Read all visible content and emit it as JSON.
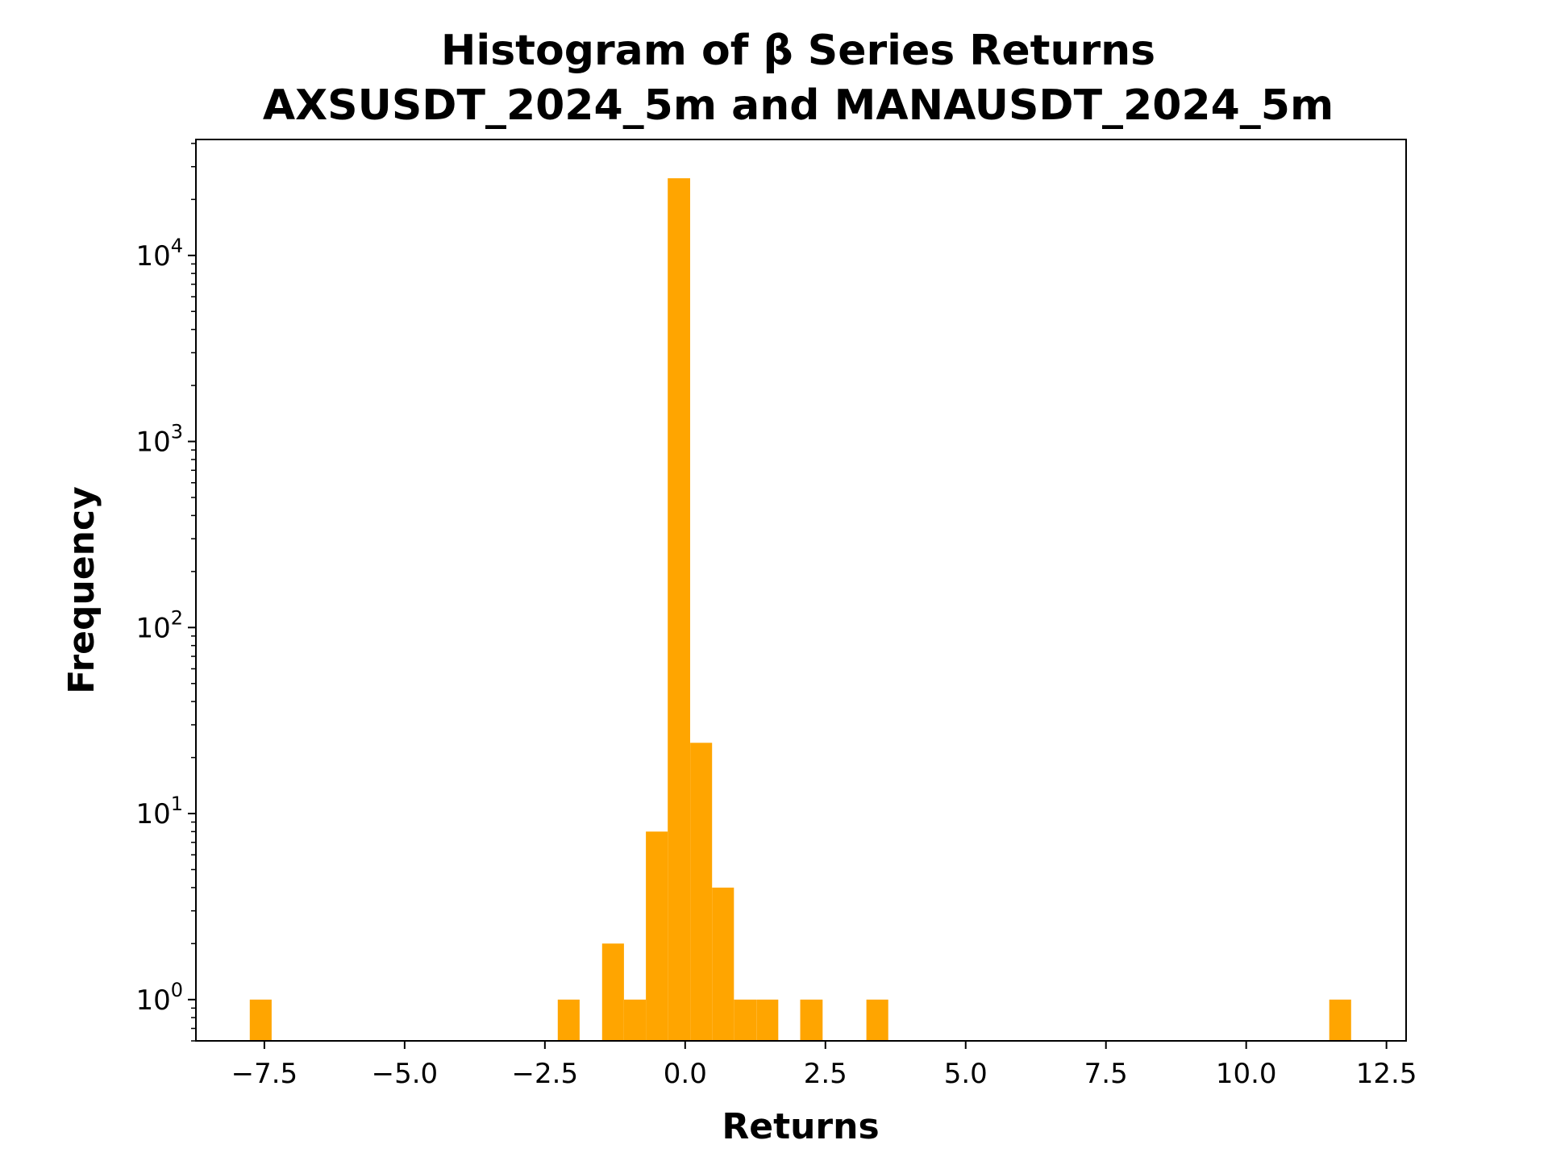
{
  "chart_data": {
    "type": "bar",
    "title_lines": [
      "Histogram of β Series Returns",
      "AXSUSDT_2024_5m and MANAUSDT_2024_5m"
    ],
    "xlabel": "Returns",
    "ylabel": "Frequency",
    "yscale": "log",
    "xlim": [
      -8.72,
      12.85
    ],
    "ylim": [
      0.6,
      42000
    ],
    "grid": false,
    "legend": "none",
    "bar_color": "#FFA500",
    "x_ticks": [
      {
        "value": -7.5,
        "label": "−7.5"
      },
      {
        "value": -5.0,
        "label": "−5.0"
      },
      {
        "value": -2.5,
        "label": "−2.5"
      },
      {
        "value": 0.0,
        "label": "0.0"
      },
      {
        "value": 2.5,
        "label": "2.5"
      },
      {
        "value": 5.0,
        "label": "5.0"
      },
      {
        "value": 7.5,
        "label": "7.5"
      },
      {
        "value": 10.0,
        "label": "10.0"
      },
      {
        "value": 12.5,
        "label": "12.5"
      }
    ],
    "y_ticks": [
      {
        "value": 1,
        "base": "10",
        "exp": "0"
      },
      {
        "value": 10,
        "base": "10",
        "exp": "1"
      },
      {
        "value": 100,
        "base": "10",
        "exp": "2"
      },
      {
        "value": 1000,
        "base": "10",
        "exp": "3"
      },
      {
        "value": 10000,
        "base": "10",
        "exp": "4"
      }
    ],
    "bins": [
      {
        "x0": -7.76,
        "x1": -7.37,
        "count": 1
      },
      {
        "x0": -2.27,
        "x1": -1.88,
        "count": 1
      },
      {
        "x0": -1.48,
        "x1": -1.09,
        "count": 2
      },
      {
        "x0": -1.09,
        "x1": -0.7,
        "count": 1
      },
      {
        "x0": -0.7,
        "x1": -0.31,
        "count": 8
      },
      {
        "x0": -0.31,
        "x1": 0.09,
        "count": 26000
      },
      {
        "x0": 0.09,
        "x1": 0.48,
        "count": 24
      },
      {
        "x0": 0.48,
        "x1": 0.87,
        "count": 4
      },
      {
        "x0": 0.87,
        "x1": 1.27,
        "count": 1
      },
      {
        "x0": 1.27,
        "x1": 1.66,
        "count": 1
      },
      {
        "x0": 2.05,
        "x1": 2.45,
        "count": 1
      },
      {
        "x0": 3.23,
        "x1": 3.62,
        "count": 1
      },
      {
        "x0": 11.48,
        "x1": 11.87,
        "count": 1
      }
    ]
  }
}
